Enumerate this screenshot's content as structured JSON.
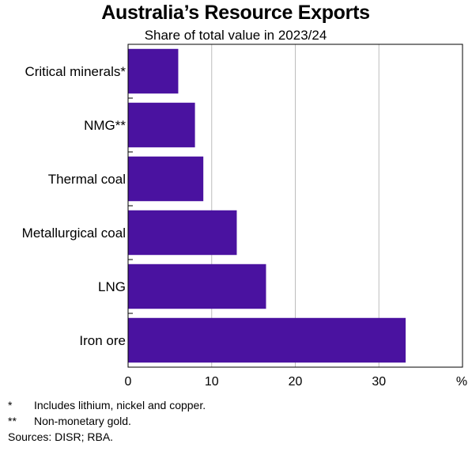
{
  "chart_data": {
    "type": "bar",
    "orientation": "horizontal",
    "title": "Australia’s Resource Exports",
    "subtitle": "Share of total value in 2023/24",
    "categories": [
      "Critical minerals*",
      "NMG**",
      "Thermal coal",
      "Metallurgical coal",
      "LNG",
      "Iron ore"
    ],
    "values": [
      6,
      8,
      9,
      13,
      16.5,
      33.2
    ],
    "xlim": [
      0,
      40
    ],
    "x_ticks": [
      "0",
      "10",
      "20",
      "30"
    ],
    "x_unit": "%",
    "grid": true,
    "bar_color": "#4a12a0"
  },
  "footnotes": [
    {
      "mark": "*",
      "text": "Includes lithium, nickel and copper."
    },
    {
      "mark": "**",
      "text": "Non-monetary gold."
    }
  ],
  "sources": "Sources: DISR; RBA."
}
